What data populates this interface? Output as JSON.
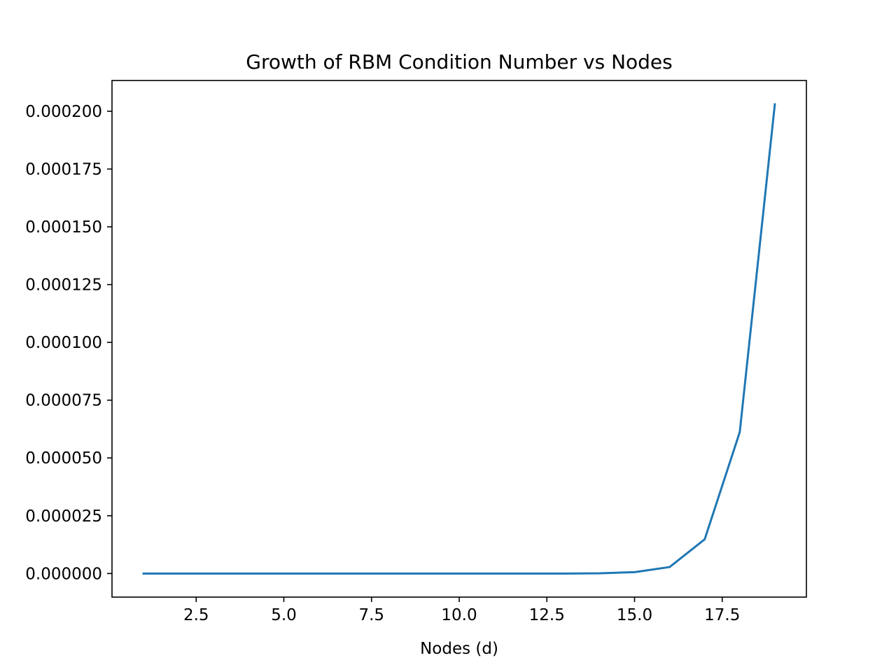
{
  "chart_data": {
    "type": "line",
    "title": "Growth of RBM Condition Number vs Nodes",
    "xlabel": "Nodes (d)",
    "ylabel": "",
    "xlim": [
      0.1,
      19.9
    ],
    "ylim": [
      -1.02e-05,
      0.0002133
    ],
    "grid": false,
    "legend": "none",
    "x_ticks": [
      2.5,
      5.0,
      7.5,
      10.0,
      12.5,
      15.0,
      17.5
    ],
    "x_tick_labels": [
      "2.5",
      "5.0",
      "7.5",
      "10.0",
      "12.5",
      "15.0",
      "17.5"
    ],
    "y_ticks": [
      0.0,
      2.5e-05,
      5e-05,
      7.5e-05,
      0.0001,
      0.000125,
      0.00015,
      0.000175,
      0.0002
    ],
    "y_tick_labels": [
      "0.000000",
      "0.000025",
      "0.000050",
      "0.000075",
      "0.000100",
      "0.000125",
      "0.000150",
      "0.000175",
      "0.000200"
    ],
    "series": [
      {
        "color": "#1f77b4",
        "x": [
          1,
          2,
          3,
          4,
          5,
          6,
          7,
          8,
          9,
          10,
          11,
          12,
          13,
          14,
          15,
          16,
          17,
          18,
          19
        ],
        "y": [
          0,
          0,
          0,
          0,
          0,
          0,
          0,
          0,
          0,
          0,
          0,
          0,
          0,
          1e-07,
          6e-07,
          2.8e-06,
          1.48e-05,
          6.12e-05,
          0.000203
        ]
      }
    ]
  }
}
